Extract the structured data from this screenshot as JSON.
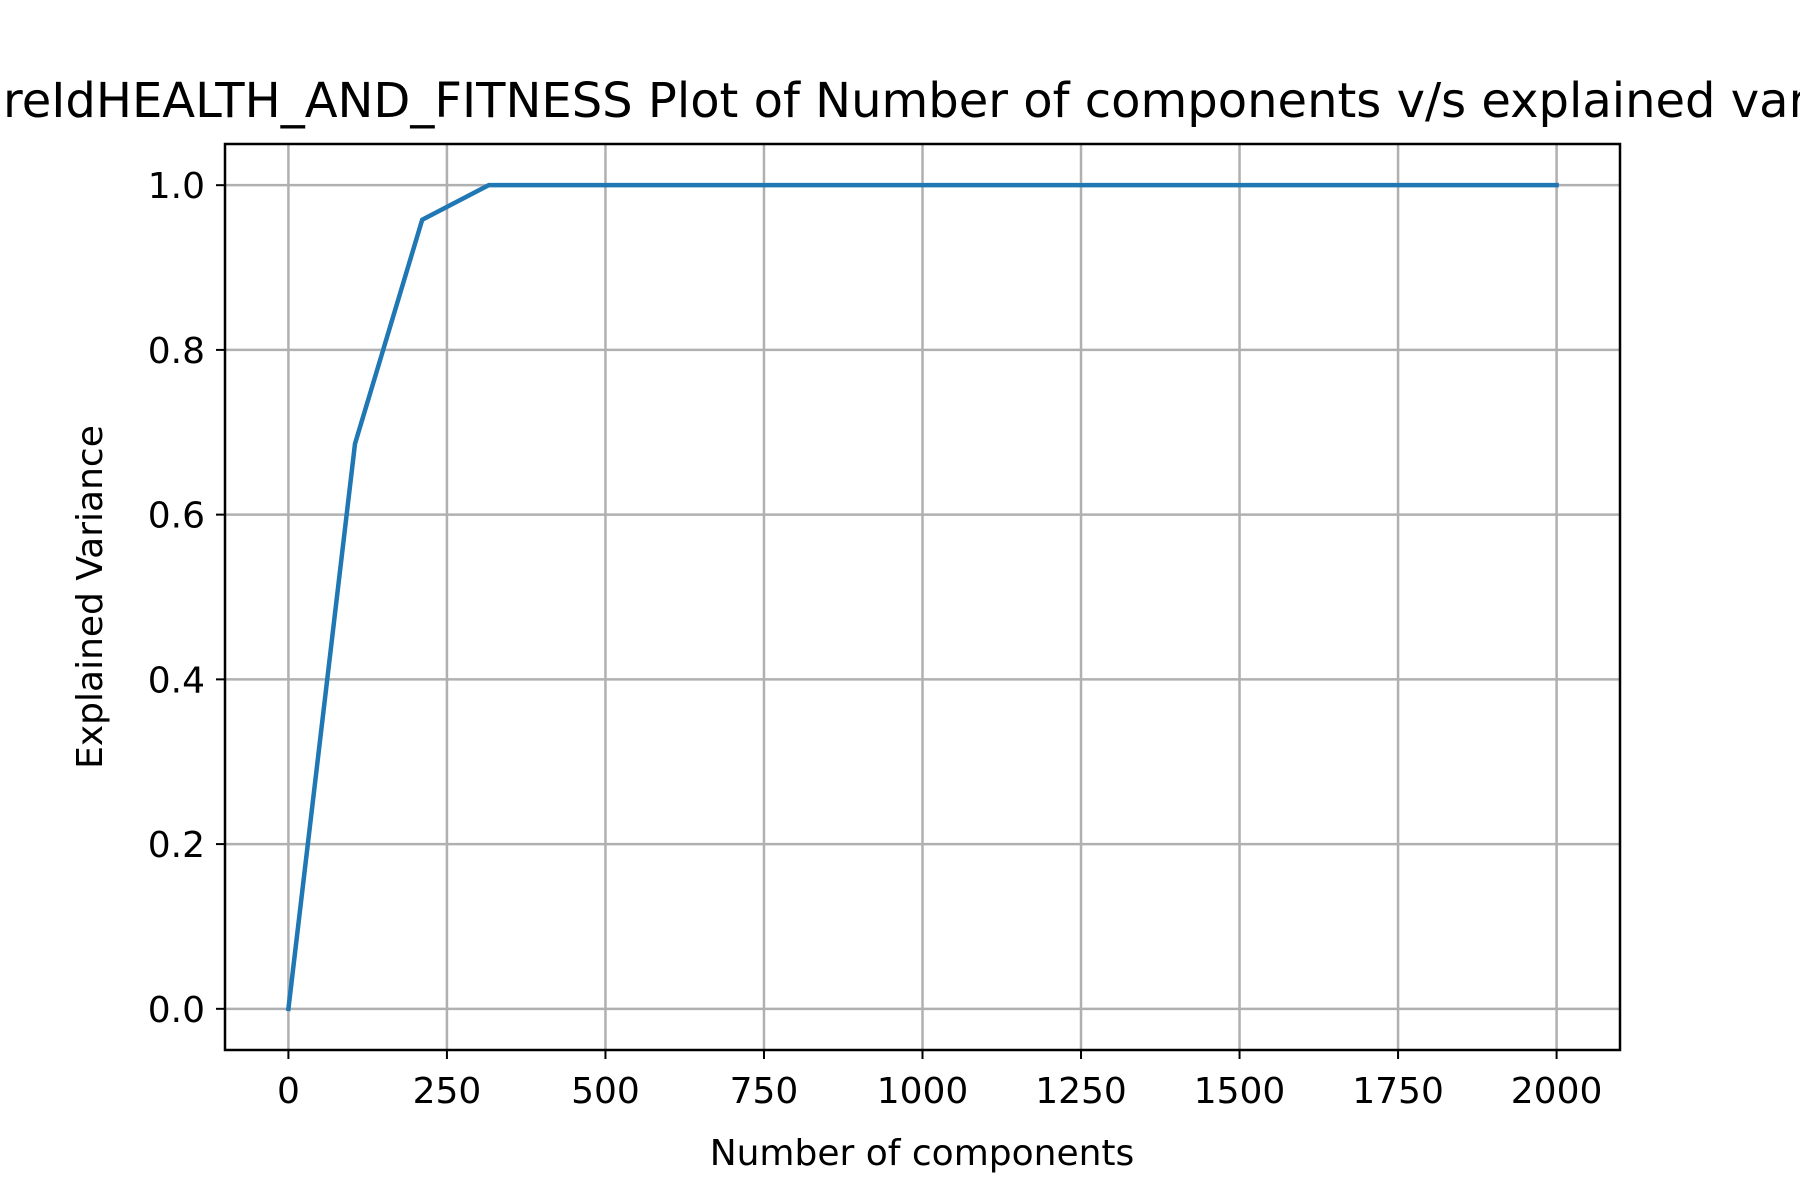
{
  "chart_data": {
    "type": "line",
    "title": "genreIdHEALTH_AND_FITNESS Plot of Number of components v/s explained variance",
    "xlabel": "Number of components",
    "ylabel": "Explained Variance",
    "xlim": [
      -100,
      2100
    ],
    "ylim": [
      -0.05,
      1.05
    ],
    "xticks": [
      0,
      250,
      500,
      750,
      1000,
      1250,
      1500,
      1750,
      2000
    ],
    "yticks": [
      0.0,
      0.2,
      0.4,
      0.6,
      0.8,
      1.0
    ],
    "xtick_labels": [
      "0",
      "250",
      "500",
      "750",
      "1000",
      "1250",
      "1500",
      "1750",
      "2000"
    ],
    "ytick_labels": [
      "0.0",
      "0.2",
      "0.4",
      "0.6",
      "0.8",
      "1.0"
    ],
    "grid": true,
    "legend": "none",
    "series": [
      {
        "color": "#1f77b4",
        "x": [
          0,
          105,
          211,
          316,
          421,
          526,
          632,
          737,
          842,
          947,
          1053,
          1158,
          1263,
          1368,
          1474,
          1579,
          1684,
          1789,
          1895,
          2000
        ],
        "y": [
          0.0,
          0.686,
          0.958,
          1.0,
          1.0,
          1.0,
          1.0,
          1.0,
          1.0,
          1.0,
          1.0,
          1.0,
          1.0,
          1.0,
          1.0,
          1.0,
          1.0,
          1.0,
          1.0,
          1.0
        ]
      }
    ]
  }
}
